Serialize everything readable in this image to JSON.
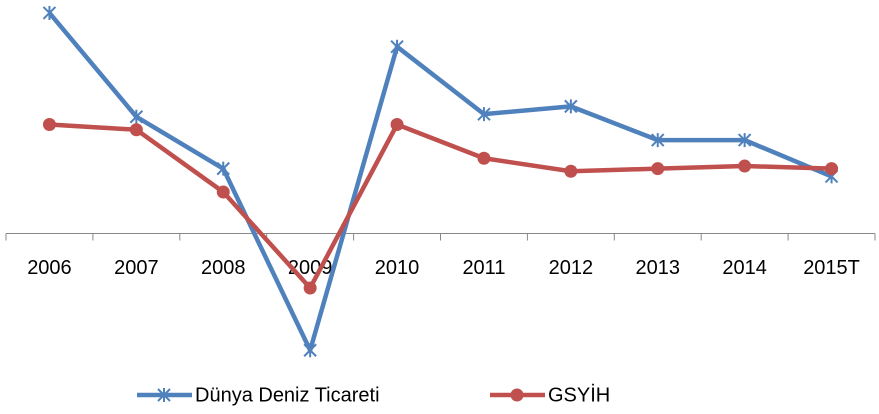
{
  "chart_data": {
    "type": "line",
    "categories": [
      "2006",
      "2007",
      "2008",
      "2009",
      "2010",
      "2011",
      "2012",
      "2013",
      "2014",
      "2015T"
    ],
    "series": [
      {
        "name": "Dünya Deniz Ticareti",
        "color": "#4f81bd",
        "marker": "star",
        "values": [
          8.5,
          4.5,
          2.5,
          -4.5,
          7.2,
          4.6,
          4.9,
          3.6,
          3.6,
          2.2
        ]
      },
      {
        "name": "GSYİH",
        "color": "#c0504d",
        "marker": "circle",
        "values": [
          4.2,
          4.0,
          1.6,
          -2.1,
          4.2,
          2.9,
          2.4,
          2.5,
          2.6,
          2.5
        ]
      }
    ],
    "ylim": [
      -5.3,
      9
    ],
    "legend": "bottom"
  }
}
